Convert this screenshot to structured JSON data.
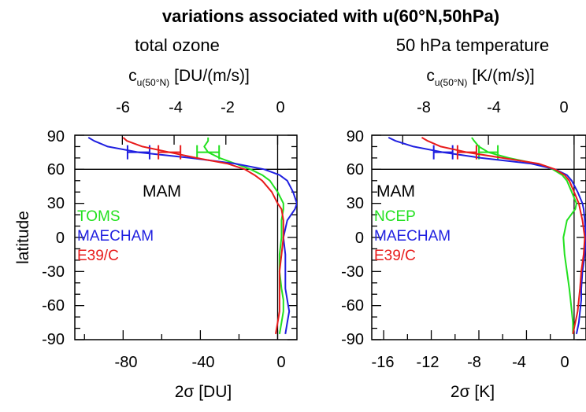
{
  "title": "variations associated with u(60°N,50hPa)",
  "colors": {
    "green": "#22e11f",
    "blue": "#1f1fe0",
    "red": "#e81b1b"
  },
  "panels": {
    "ozone": {
      "subtitle": "total ozone",
      "top_label_main": "c",
      "top_label_sub": "u(50°N)",
      "top_label_unit": "[DU/(m/s)]",
      "top_ticks": [
        "-6",
        "-4",
        "-2",
        "0"
      ],
      "bottom_ticks": [
        "-80",
        "-40",
        "0"
      ],
      "bottom_label": "2σ [DU]",
      "season": "MAM",
      "legend": [
        "TOMS",
        "MAECHAM",
        "E39/C"
      ]
    },
    "temp": {
      "subtitle": "50 hPa temperature",
      "top_label_main": "c",
      "top_label_sub": "u(50°N)",
      "top_label_unit": "[K/(m/s)]",
      "top_ticks": [
        "-8",
        "-4",
        "0"
      ],
      "bottom_ticks": [
        "-16",
        "-12",
        "-8",
        "-4",
        "0"
      ],
      "bottom_label": "2σ [K]",
      "season": "MAM",
      "legend": [
        "NCEP",
        "MAECHAM",
        "E39/C"
      ]
    }
  },
  "ylabel": "latitude",
  "yticks": [
    "90",
    "60",
    "30",
    "0",
    "-30",
    "-60",
    "-90"
  ],
  "chart_data": [
    {
      "type": "line",
      "panel": "total ozone",
      "xlabel": "2σ [DU]",
      "ylabel": "latitude",
      "xlim": [
        -105,
        10
      ],
      "ylim": [
        -90,
        90
      ],
      "y": [
        -85,
        -75,
        -65,
        -55,
        -45,
        -30,
        -15,
        0,
        15,
        25,
        30,
        40,
        50,
        55,
        60,
        65,
        70,
        75,
        80,
        85,
        88
      ],
      "series": [
        {
          "name": "TOMS",
          "color": "green",
          "x": [
            1,
            2,
            3,
            3,
            2,
            1,
            1,
            2,
            2,
            3,
            3,
            0,
            -4,
            -8,
            -14,
            -22,
            -30,
            -36,
            -38,
            -36,
            -36
          ]
        },
        {
          "name": "MAECHAM",
          "color": "blue",
          "x": [
            4,
            5,
            6,
            5,
            4,
            4,
            4,
            3,
            5,
            9,
            10,
            8,
            5,
            1,
            -7,
            -22,
            -45,
            -72,
            -88,
            -95,
            -98
          ]
        },
        {
          "name": "E39/C",
          "color": "red",
          "x": [
            -1,
            0,
            1,
            1,
            1,
            1,
            2,
            3,
            3,
            2,
            0,
            -3,
            -8,
            -12,
            -17,
            -26,
            -42,
            -56,
            -70,
            -78,
            -80
          ]
        }
      ]
    },
    {
      "type": "line",
      "panel": "50 hPa temperature",
      "xlabel": "2σ [K]",
      "ylabel": "latitude",
      "xlim": [
        -17,
        1
      ],
      "ylim": [
        -90,
        90
      ],
      "y": [
        -85,
        -75,
        -65,
        -55,
        -45,
        -30,
        -15,
        0,
        15,
        25,
        30,
        40,
        50,
        55,
        60,
        65,
        70,
        75,
        80,
        85,
        88
      ],
      "series": [
        {
          "name": "NCEP",
          "color": "green",
          "x": [
            -0.1,
            -0.1,
            -0.2,
            -0.3,
            -0.4,
            -0.6,
            -0.8,
            -0.9,
            -0.6,
            0.1,
            0.2,
            -0.2,
            -0.6,
            -1.0,
            -1.8,
            -3.2,
            -5.5,
            -7.2,
            -8.0,
            -8.4,
            -8.6
          ]
        },
        {
          "name": "MAECHAM",
          "color": "blue",
          "x": [
            0.2,
            0.4,
            0.5,
            0.6,
            0.6,
            0.7,
            0.9,
            1.0,
            0.9,
            0.8,
            0.7,
            0.3,
            -0.2,
            -0.6,
            -1.6,
            -3.6,
            -7.8,
            -11.0,
            -13.5,
            -15.0,
            -15.6
          ]
        },
        {
          "name": "E39/C",
          "color": "red",
          "x": [
            -0.1,
            0.1,
            0.3,
            0.4,
            0.5,
            0.6,
            0.8,
            0.9,
            0.7,
            0.5,
            0.4,
            0.0,
            -0.4,
            -0.8,
            -1.6,
            -3.0,
            -6.0,
            -9.0,
            -11.2,
            -12.3,
            -12.8
          ]
        }
      ]
    }
  ]
}
